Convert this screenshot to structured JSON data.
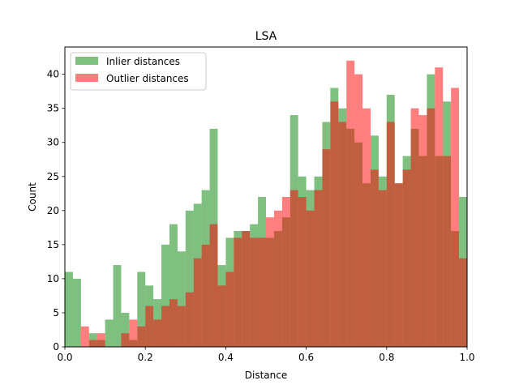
{
  "chart_data": {
    "type": "histogram",
    "title": "LSA",
    "xlabel": "Distance",
    "ylabel": "Count",
    "xlim": [
      0.0,
      1.0
    ],
    "ylim": [
      0,
      44
    ],
    "x_ticks": [
      "0.0",
      "0.2",
      "0.4",
      "0.6",
      "0.8",
      "1.0"
    ],
    "y_ticks": [
      "0",
      "5",
      "10",
      "15",
      "20",
      "25",
      "30",
      "35",
      "40"
    ],
    "bins": 50,
    "bin_width": 0.02,
    "legend_position": "upper-left",
    "series": [
      {
        "name": "Inlier distances",
        "color": "#008000",
        "alpha": 0.5,
        "values": [
          11,
          10,
          0,
          2,
          1,
          4,
          12,
          5,
          1,
          11,
          9,
          7,
          15,
          18,
          14,
          20,
          21,
          23,
          32,
          12,
          16,
          17,
          17,
          18,
          22,
          16,
          17,
          19,
          34,
          25,
          23,
          25,
          33,
          38,
          35,
          32,
          30,
          24,
          31,
          25,
          37,
          24,
          28,
          32,
          28,
          40,
          28,
          36,
          17,
          22
        ]
      },
      {
        "name": "Outlier distances",
        "color": "#ff0000",
        "alpha": 0.5,
        "values": [
          0,
          0,
          3,
          1,
          2,
          0,
          0,
          2,
          4,
          3,
          6,
          4,
          6,
          7,
          6,
          8,
          13,
          15,
          18,
          9,
          11,
          16,
          17,
          16,
          16,
          19,
          20,
          22,
          23,
          22,
          20,
          23,
          29,
          36,
          33,
          42,
          40,
          35,
          26,
          23,
          33,
          24,
          26,
          35,
          34,
          35,
          41,
          28,
          38,
          13
        ]
      }
    ]
  }
}
